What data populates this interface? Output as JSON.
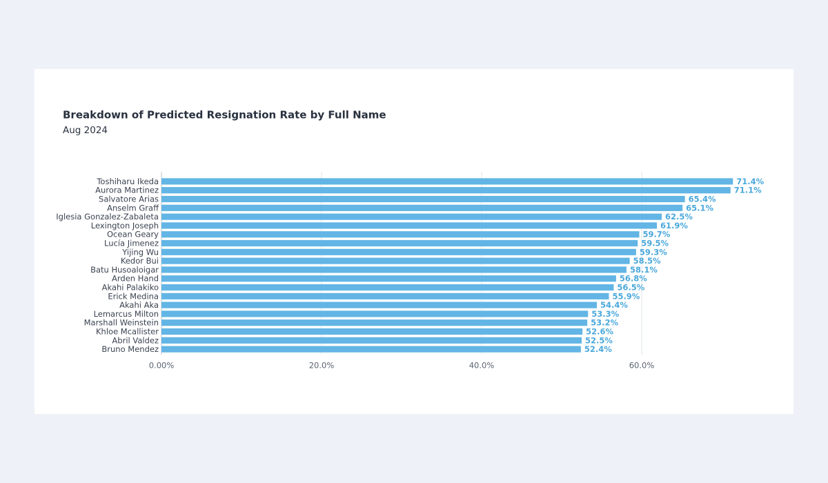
{
  "chart_data": {
    "type": "hbar",
    "title": "Breakdown of Predicted Resignation Rate by Full Name",
    "subtitle": "Aug 2024",
    "categories": [
      "Toshiharu Ikeda",
      "Aurora Martinez",
      "Salvatore Arias",
      "Anselm Graff",
      "Iglesia Gonzalez-Zabaleta",
      "Lexington Joseph",
      "Ocean Geary",
      "Lucía Jimenez",
      "Yijing Wu",
      "Kedor Bui",
      "Batu Husoaloigar",
      "Arden Hand",
      "Akahi Palakiko",
      "Erick Medina",
      "Akahi Aka",
      "Lemarcus Milton",
      "Marshall Weinstein",
      "Khloe Mcallister",
      "Abril Valdez",
      "Bruno Mendez"
    ],
    "values": [
      71.4,
      71.1,
      65.4,
      65.1,
      62.5,
      61.9,
      59.7,
      59.5,
      59.3,
      58.5,
      58.1,
      56.8,
      56.5,
      55.9,
      54.4,
      53.3,
      53.2,
      52.6,
      52.5,
      52.4
    ],
    "value_labels": [
      "71.4%",
      "71.1%",
      "65.4%",
      "65.1%",
      "62.5%",
      "61.9%",
      "59.7%",
      "59.5%",
      "59.3%",
      "58.5%",
      "58.1%",
      "56.8%",
      "56.5%",
      "55.9%",
      "54.4%",
      "53.3%",
      "53.2%",
      "52.6%",
      "52.5%",
      "52.4%"
    ],
    "color": "#62b5e5",
    "xlim": [
      0,
      72
    ],
    "xticks": [
      {
        "value": 0,
        "label": "0.00%"
      },
      {
        "value": 20,
        "label": "20.0%"
      },
      {
        "value": 40,
        "label": "40.0%"
      },
      {
        "value": 60,
        "label": "60.0%"
      }
    ],
    "grid": true
  }
}
